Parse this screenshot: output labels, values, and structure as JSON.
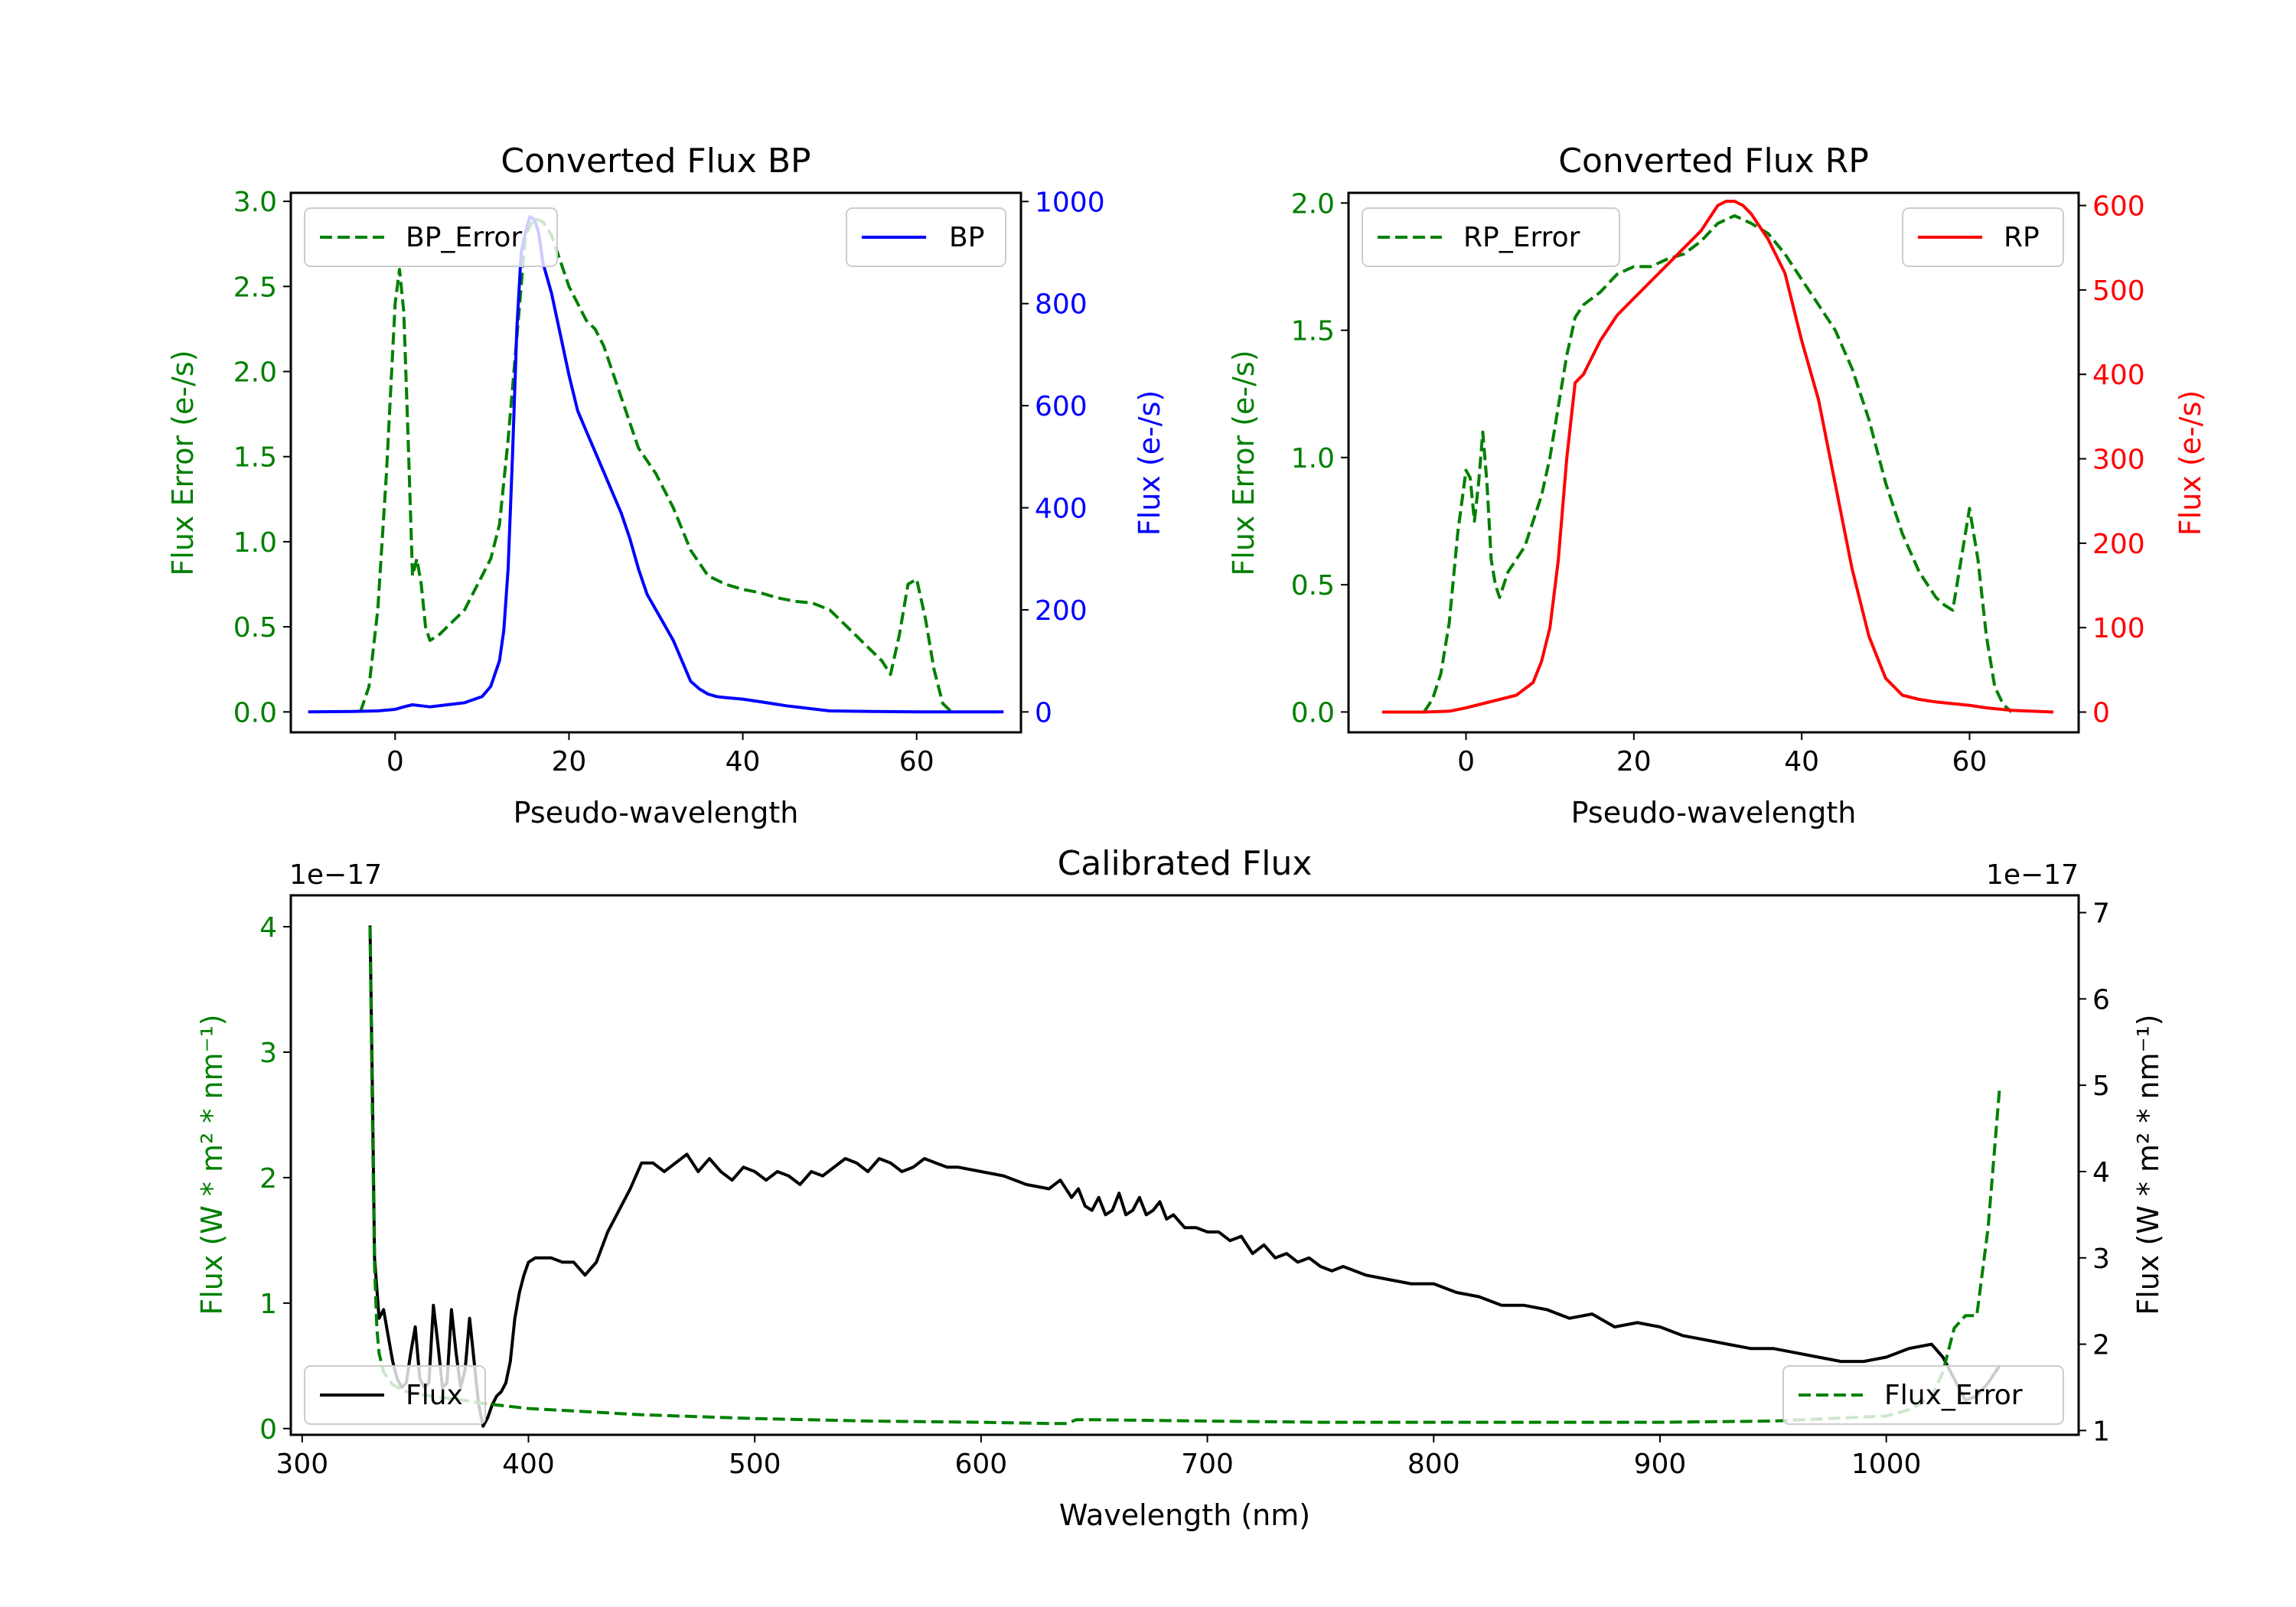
{
  "chart_data": [
    {
      "type": "line",
      "title": "Converted Flux BP",
      "xlabel": "Pseudo-wavelength",
      "ylabel_left": "Flux Error (e-/s)",
      "ylabel_right": "Flux (e-/s)",
      "xlim": [
        -12,
        72
      ],
      "ylim_left": [
        -0.12,
        3.05
      ],
      "ylim_right": [
        -40,
        1017
      ],
      "x_ticks": [
        "0",
        "20",
        "40",
        "60"
      ],
      "x_tick_values": [
        0,
        20,
        40,
        60
      ],
      "y_left_ticks": [
        "0.0",
        "0.5",
        "1.0",
        "1.5",
        "2.0",
        "2.5",
        "3.0"
      ],
      "y_left_tick_values": [
        0,
        0.5,
        1.0,
        1.5,
        2.0,
        2.5,
        3.0
      ],
      "y_right_ticks": [
        "0",
        "200",
        "400",
        "600",
        "800",
        "1000"
      ],
      "y_right_tick_values": [
        0,
        200,
        400,
        600,
        800,
        1000
      ],
      "legend_left": {
        "label": "BP_Error",
        "position": "upper-left"
      },
      "legend_right": {
        "label": "BP",
        "position": "upper-right"
      },
      "series": [
        {
          "name": "BP_Error",
          "axis": "left",
          "color": "#008000",
          "style": "dashed",
          "x": [
            -4,
            -3,
            -2,
            -1,
            0,
            0.5,
            1,
            1.5,
            2,
            2.5,
            3,
            3.5,
            4,
            5,
            6,
            7,
            8,
            9,
            10,
            11,
            12,
            13,
            14,
            15,
            16,
            17,
            18,
            19,
            20,
            21,
            22,
            23,
            24,
            25,
            26,
            27,
            28,
            30,
            32,
            34,
            36,
            38,
            40,
            42,
            44,
            46,
            48,
            50,
            52,
            54,
            56,
            57,
            58,
            59,
            60,
            61,
            62,
            63,
            64
          ],
          "y": [
            0.0,
            0.15,
            0.6,
            1.4,
            2.4,
            2.6,
            2.35,
            1.6,
            0.8,
            0.9,
            0.75,
            0.5,
            0.42,
            0.45,
            0.5,
            0.55,
            0.6,
            0.7,
            0.8,
            0.9,
            1.1,
            1.6,
            2.2,
            2.8,
            2.9,
            2.88,
            2.8,
            2.65,
            2.5,
            2.4,
            2.3,
            2.25,
            2.15,
            2.0,
            1.85,
            1.7,
            1.55,
            1.4,
            1.2,
            0.95,
            0.8,
            0.75,
            0.72,
            0.7,
            0.67,
            0.65,
            0.64,
            0.6,
            0.5,
            0.4,
            0.3,
            0.22,
            0.45,
            0.75,
            0.78,
            0.55,
            0.25,
            0.05,
            0.0
          ]
        },
        {
          "name": "BP",
          "axis": "right",
          "color": "#0000ff",
          "style": "solid",
          "x": [
            -10,
            -5,
            -2,
            0,
            1,
            2,
            3,
            4,
            6,
            8,
            10,
            11,
            12,
            12.5,
            13,
            13.5,
            14,
            14.5,
            15,
            15.5,
            16,
            16.5,
            17,
            18,
            19,
            20,
            21,
            22,
            23,
            24,
            25,
            26,
            27,
            28,
            29,
            30,
            31,
            32,
            33,
            34,
            35,
            36,
            37,
            38,
            40,
            42,
            45,
            50,
            55,
            60,
            65,
            70
          ],
          "y": [
            0,
            1,
            2,
            5,
            10,
            14,
            12,
            10,
            14,
            18,
            30,
            50,
            100,
            160,
            280,
            500,
            750,
            900,
            940,
            970,
            965,
            940,
            880,
            820,
            740,
            660,
            590,
            550,
            510,
            470,
            430,
            390,
            340,
            280,
            230,
            200,
            170,
            140,
            100,
            60,
            45,
            35,
            30,
            28,
            25,
            20,
            12,
            2,
            1,
            0,
            0,
            0
          ]
        }
      ]
    },
    {
      "type": "line",
      "title": "Converted Flux RP",
      "xlabel": "Pseudo-wavelength",
      "ylabel_left": "Flux Error (e-/s)",
      "ylabel_right": "Flux (e-/s)",
      "xlim": [
        -14,
        73
      ],
      "ylim_left": [
        -0.08,
        2.04
      ],
      "ylim_right": [
        -24,
        615
      ],
      "x_ticks": [
        "0",
        "20",
        "40",
        "60"
      ],
      "x_tick_values": [
        0,
        20,
        40,
        60
      ],
      "y_left_ticks": [
        "0.0",
        "0.5",
        "1.0",
        "1.5",
        "2.0"
      ],
      "y_left_tick_values": [
        0,
        0.5,
        1.0,
        1.5,
        2.0
      ],
      "y_right_ticks": [
        "0",
        "100",
        "200",
        "300",
        "400",
        "500",
        "600"
      ],
      "y_right_tick_values": [
        0,
        100,
        200,
        300,
        400,
        500,
        600
      ],
      "legend_left": {
        "label": "RP_Error",
        "position": "upper-left"
      },
      "legend_right": {
        "label": "RP",
        "position": "upper-right"
      },
      "series": [
        {
          "name": "RP_Error",
          "axis": "left",
          "color": "#008000",
          "style": "dashed",
          "x": [
            -5,
            -4,
            -3,
            -2,
            -1,
            0,
            0.5,
            1,
            1.5,
            2,
            2.5,
            3,
            3.5,
            4,
            5,
            6,
            7,
            8,
            9,
            10,
            11,
            12,
            13,
            14,
            16,
            18,
            20,
            22,
            24,
            26,
            28,
            30,
            32,
            34,
            36,
            38,
            40,
            42,
            44,
            46,
            48,
            50,
            52,
            54,
            55,
            56,
            57,
            58,
            59,
            60,
            61,
            62,
            63,
            64,
            65
          ],
          "y": [
            0.0,
            0.05,
            0.15,
            0.35,
            0.7,
            0.95,
            0.92,
            0.75,
            0.9,
            1.1,
            0.9,
            0.6,
            0.5,
            0.45,
            0.55,
            0.6,
            0.65,
            0.75,
            0.85,
            1.0,
            1.2,
            1.4,
            1.55,
            1.6,
            1.65,
            1.72,
            1.75,
            1.75,
            1.78,
            1.8,
            1.85,
            1.92,
            1.95,
            1.92,
            1.88,
            1.8,
            1.7,
            1.6,
            1.5,
            1.35,
            1.15,
            0.9,
            0.7,
            0.55,
            0.5,
            0.45,
            0.42,
            0.4,
            0.6,
            0.8,
            0.6,
            0.3,
            0.1,
            0.03,
            0.0
          ]
        },
        {
          "name": "RP",
          "axis": "right",
          "color": "#ff0000",
          "style": "solid",
          "x": [
            -10,
            -5,
            -2,
            0,
            2,
            4,
            6,
            8,
            9,
            10,
            11,
            12,
            13,
            14,
            15,
            16,
            18,
            20,
            22,
            24,
            26,
            28,
            29,
            30,
            31,
            32,
            33,
            34,
            36,
            38,
            40,
            42,
            44,
            46,
            48,
            50,
            52,
            54,
            56,
            58,
            60,
            62,
            65,
            70
          ],
          "y": [
            0,
            0,
            1,
            5,
            10,
            15,
            20,
            35,
            60,
            100,
            180,
            300,
            390,
            400,
            420,
            440,
            470,
            490,
            510,
            530,
            550,
            570,
            585,
            600,
            605,
            605,
            600,
            590,
            560,
            520,
            440,
            370,
            270,
            170,
            90,
            40,
            20,
            15,
            12,
            10,
            8,
            5,
            2,
            0
          ]
        }
      ]
    },
    {
      "type": "line",
      "title": "Calibrated Flux",
      "xlabel": "Wavelength (nm)",
      "ylabel_left": "Flux (W * m² * nm⁻¹)",
      "ylabel_right": "Flux (W * m² * nm⁻¹)",
      "offset_text_left": "1e−17",
      "offset_text_right": "1e−17",
      "xlim": [
        295,
        1085
      ],
      "ylim_left": [
        -0.05,
        4.25
      ],
      "ylim_right": [
        0.95,
        7.2
      ],
      "x_ticks": [
        "300",
        "400",
        "500",
        "600",
        "700",
        "800",
        "900",
        "1000"
      ],
      "x_tick_values": [
        300,
        400,
        500,
        600,
        700,
        800,
        900,
        1000
      ],
      "y_left_ticks": [
        "0",
        "1",
        "2",
        "3",
        "4"
      ],
      "y_left_tick_values": [
        0,
        1,
        2,
        3,
        4
      ],
      "y_right_ticks": [
        "1",
        "2",
        "3",
        "4",
        "5",
        "6",
        "7"
      ],
      "y_right_tick_values": [
        1,
        2,
        3,
        4,
        5,
        6,
        7
      ],
      "legend_left": {
        "label": "Flux",
        "position": "lower-left"
      },
      "legend_right": {
        "label": "Flux_Error",
        "position": "lower-right"
      },
      "series": [
        {
          "name": "Flux",
          "axis": "right",
          "color": "#000000",
          "style": "solid",
          "x": [
            330,
            331,
            332,
            334,
            336,
            338,
            340,
            342,
            344,
            346,
            348,
            350,
            352,
            354,
            356,
            358,
            360,
            362,
            364,
            366,
            368,
            370,
            372,
            374,
            376,
            378,
            380,
            382,
            384,
            386,
            388,
            390,
            392,
            394,
            396,
            398,
            400,
            403,
            406,
            410,
            415,
            420,
            425,
            430,
            435,
            440,
            445,
            450,
            455,
            460,
            465,
            470,
            475,
            480,
            485,
            490,
            495,
            500,
            505,
            510,
            515,
            520,
            525,
            530,
            535,
            540,
            545,
            550,
            555,
            560,
            565,
            570,
            575,
            580,
            585,
            590,
            600,
            610,
            620,
            630,
            635,
            640,
            643,
            646,
            649,
            652,
            655,
            658,
            661,
            664,
            667,
            670,
            673,
            676,
            679,
            682,
            685,
            690,
            695,
            700,
            705,
            710,
            715,
            720,
            725,
            730,
            735,
            740,
            745,
            750,
            755,
            760,
            770,
            780,
            790,
            800,
            810,
            820,
            830,
            840,
            850,
            860,
            870,
            880,
            890,
            900,
            910,
            920,
            930,
            940,
            950,
            960,
            970,
            980,
            990,
            1000,
            1010,
            1020,
            1025,
            1030,
            1035,
            1040,
            1045,
            1050
          ],
          "y": [
            6.85,
            5.0,
            3.0,
            2.3,
            2.4,
            2.1,
            1.8,
            1.6,
            1.5,
            1.55,
            1.9,
            2.2,
            1.6,
            1.5,
            1.55,
            2.45,
            2.0,
            1.5,
            1.55,
            2.4,
            1.9,
            1.5,
            1.7,
            2.3,
            1.8,
            1.3,
            1.05,
            1.15,
            1.3,
            1.4,
            1.45,
            1.55,
            1.8,
            2.3,
            2.6,
            2.8,
            2.95,
            3.0,
            3.0,
            3.0,
            2.95,
            2.95,
            2.8,
            2.95,
            3.3,
            3.55,
            3.8,
            4.1,
            4.1,
            4.0,
            4.1,
            4.2,
            4.0,
            4.15,
            4.0,
            3.9,
            4.05,
            4.0,
            3.9,
            4.0,
            3.95,
            3.85,
            4.0,
            3.95,
            4.05,
            4.15,
            4.1,
            4.0,
            4.15,
            4.1,
            4.0,
            4.05,
            4.15,
            4.1,
            4.05,
            4.05,
            4.0,
            3.95,
            3.85,
            3.8,
            3.9,
            3.7,
            3.8,
            3.6,
            3.55,
            3.7,
            3.5,
            3.55,
            3.75,
            3.5,
            3.55,
            3.7,
            3.5,
            3.55,
            3.65,
            3.45,
            3.5,
            3.35,
            3.35,
            3.3,
            3.3,
            3.2,
            3.25,
            3.05,
            3.15,
            3.0,
            3.05,
            2.95,
            3.0,
            2.9,
            2.85,
            2.9,
            2.8,
            2.75,
            2.7,
            2.7,
            2.6,
            2.55,
            2.45,
            2.45,
            2.4,
            2.3,
            2.35,
            2.2,
            2.25,
            2.2,
            2.1,
            2.05,
            2.0,
            1.95,
            1.95,
            1.9,
            1.85,
            1.8,
            1.8,
            1.85,
            1.95,
            2.0,
            1.85,
            1.6,
            1.35,
            1.4,
            1.55,
            1.75
          ]
        },
        {
          "name": "Flux_Error",
          "axis": "left",
          "color": "#008000",
          "style": "dashed",
          "x": [
            330,
            331,
            332,
            333,
            334,
            336,
            340,
            345,
            350,
            360,
            370,
            380,
            390,
            400,
            410,
            420,
            430,
            450,
            500,
            550,
            600,
            630,
            638,
            642,
            650,
            700,
            750,
            800,
            850,
            900,
            950,
            1000,
            1010,
            1020,
            1025,
            1030,
            1035,
            1040,
            1045,
            1050
          ],
          "y": [
            4.0,
            2.5,
            1.3,
            0.8,
            0.6,
            0.45,
            0.35,
            0.3,
            0.28,
            0.25,
            0.23,
            0.2,
            0.18,
            0.16,
            0.15,
            0.14,
            0.13,
            0.11,
            0.08,
            0.06,
            0.05,
            0.04,
            0.04,
            0.07,
            0.07,
            0.06,
            0.05,
            0.05,
            0.05,
            0.05,
            0.06,
            0.1,
            0.15,
            0.25,
            0.45,
            0.8,
            0.9,
            0.9,
            1.6,
            2.7
          ]
        }
      ]
    }
  ]
}
